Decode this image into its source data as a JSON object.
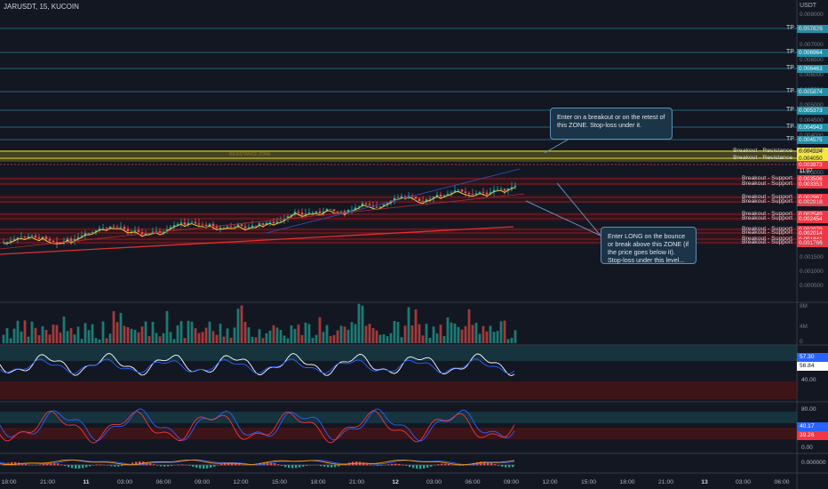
{
  "header": {
    "title": "JARUSDT, 15, KUCOIN"
  },
  "price_axis": {
    "currency": "USDT",
    "ticks": [
      "0.008000",
      "0.007500",
      "0.007000",
      "0.006500",
      "0.006000",
      "0.005500",
      "0.005000",
      "0.004500",
      "0.004000",
      "0.003500",
      "0.003000",
      "0.002500",
      "0.002000",
      "0.001500",
      "0.001000",
      "0.000500"
    ]
  },
  "tp_levels": [
    {
      "label": "TP",
      "price": "0.007626",
      "color": "#1e8fa8"
    },
    {
      "label": "TP",
      "price": "0.006964",
      "color": "#1e8fa8"
    },
    {
      "label": "TP",
      "price": "0.006463",
      "color": "#1e8fa8"
    },
    {
      "label": "TP",
      "price": "0.005874",
      "color": "#1e8fa8"
    },
    {
      "label": "TP",
      "price": "0.005373",
      "color": "#1e8fa8"
    },
    {
      "label": "TP",
      "price": "0.004943",
      "color": "#1e8fa8"
    },
    {
      "label": "TP",
      "price": "0.004575",
      "color": "#1e8fa8"
    }
  ],
  "resistance": [
    {
      "label": "Breakout - Resistance",
      "price": "0.004224",
      "color": "#f5e642",
      "text_color": "#131722"
    },
    {
      "label": "Breakout - Resistance",
      "price": "0.004050",
      "color": "#f5e642",
      "text_color": "#131722"
    }
  ],
  "current_price": {
    "price": "0.003873",
    "countdown": "11:07",
    "color": "#f23645"
  },
  "supports": [
    {
      "label": "Breakout - Support",
      "price": "0.003506"
    },
    {
      "label": "Breakout - Support",
      "price": "0.003353"
    },
    {
      "label": "Breakout - Support",
      "price": "0.002967"
    },
    {
      "label": "Breakout - Support",
      "price": "0.002818"
    },
    {
      "label": "Breakout - Support",
      "price": "0.002549"
    },
    {
      "label": "Breakout - Support",
      "price": "0.002454"
    },
    {
      "label": "Breakout - Support",
      "price": "0.002079"
    },
    {
      "label": "Breakout - Support",
      "price": "0.002014"
    },
    {
      "label": "Breakout - Support",
      "price": "0.001841"
    },
    {
      "label": "Breakout - Support",
      "price": "0.001786"
    }
  ],
  "zone_label": "RESISTANCE ZONE",
  "callouts": [
    {
      "text": "Enter on a breakout or on the retest of this ZONE. Stop-loss under it."
    },
    {
      "text": "Enter LONG on the bounce or break above this ZONE (if the price goes below it). Stop-loss under this level..."
    }
  ],
  "volume_axis": [
    "8M",
    "4M",
    "0"
  ],
  "rsi": {
    "value1": "57.30",
    "value2": "56.84",
    "tick": "40.00"
  },
  "stoch": {
    "top_tick": "80.00",
    "value1": "40.17",
    "value2": "39.26",
    "bottom_tick": "0.00"
  },
  "macd": {
    "tick": "0.000000"
  },
  "time_axis": [
    {
      "label": "18:00",
      "day": false
    },
    {
      "label": "21:00",
      "day": false
    },
    {
      "label": "11",
      "day": true
    },
    {
      "label": "03:00",
      "day": false
    },
    {
      "label": "06:00",
      "day": false
    },
    {
      "label": "09:00",
      "day": false
    },
    {
      "label": "12:00",
      "day": false
    },
    {
      "label": "15:00",
      "day": false
    },
    {
      "label": "18:00",
      "day": false
    },
    {
      "label": "21:00",
      "day": false
    },
    {
      "label": "12",
      "day": true
    },
    {
      "label": "03:00",
      "day": false
    },
    {
      "label": "06:00",
      "day": false
    },
    {
      "label": "09:00",
      "day": false
    },
    {
      "label": "12:00",
      "day": false
    },
    {
      "label": "15:00",
      "day": false
    },
    {
      "label": "18:00",
      "day": false
    },
    {
      "label": "21:00",
      "day": false
    },
    {
      "label": "13",
      "day": true
    },
    {
      "label": "03:00",
      "day": false
    },
    {
      "label": "06:00",
      "day": false
    }
  ],
  "colors": {
    "bg": "#131722",
    "tp": "#1e8fa8",
    "support": "#f23645",
    "resistance": "#f5e642",
    "up": "#26a69a",
    "down": "#ef5350"
  }
}
